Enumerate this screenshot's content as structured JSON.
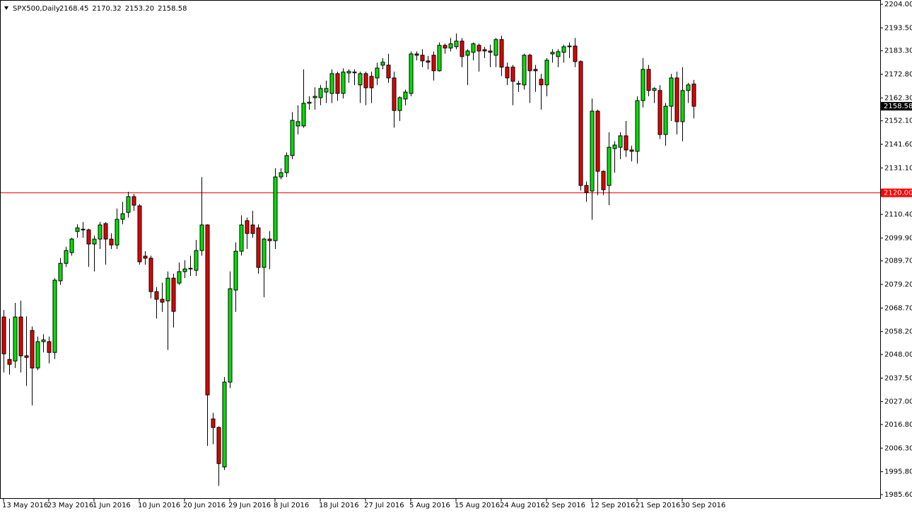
{
  "chart_data": {
    "type": "candlestick",
    "title": "SPX500,Daily",
    "ohlc_labels": [
      "2168.45",
      "2170.32",
      "2153.20",
      "2158.58"
    ],
    "categories": [
      "13 May 2016",
      null,
      null,
      null,
      null,
      null,
      null,
      null,
      "23 May 2016",
      null,
      null,
      null,
      null,
      null,
      null,
      null,
      "1 Jun 2016",
      null,
      null,
      null,
      null,
      null,
      null,
      null,
      "10 Jun 2016",
      null,
      null,
      null,
      null,
      null,
      null,
      null,
      "20 Jun 2016",
      null,
      null,
      null,
      null,
      null,
      null,
      null,
      "29 Jun 2016",
      null,
      null,
      null,
      null,
      null,
      null,
      null,
      "8 Jul 2016",
      null,
      null,
      null,
      null,
      null,
      null,
      null,
      "18 Jul 2016",
      null,
      null,
      null,
      null,
      null,
      null,
      null,
      "27 Jul 2016",
      null,
      null,
      null,
      null,
      null,
      null,
      null,
      "5 Aug 2016",
      null,
      null,
      null,
      null,
      null,
      null,
      null,
      "15 Aug 2016",
      null,
      null,
      null,
      null,
      null,
      null,
      null,
      "24 Aug 2016",
      null,
      null,
      null,
      null,
      null,
      null,
      null,
      "2 Sep 2016",
      null,
      null,
      null,
      null,
      null,
      null,
      null,
      "12 Sep 2016",
      null,
      null,
      null,
      null,
      null,
      null,
      null,
      "21 Sep 2016",
      null,
      null,
      null,
      null,
      null,
      null,
      null,
      "30 Sep 2016",
      null,
      null
    ],
    "open": [
      2064.7,
      2045.8,
      2045.1,
      2064.7,
      2047.4,
      2058.7,
      2042.0,
      2053.7,
      2053.7,
      2048.9,
      2080.8,
      2088.6,
      2093.4,
      2102.8,
      2103.5,
      2103.5,
      2097.2,
      2099.4,
      2106.3,
      2099.4,
      2096.8,
      2108.2,
      2111.3,
      2118.3,
      2114.2,
      2091.8,
      2090.9,
      2076.0,
      2072.6,
      2071.9,
      2082.0,
      2079.8,
      2084.9,
      2086.1,
      2085.5,
      2094.3,
      2105.7,
      2019.3,
      2015.5,
      1997.9,
      2035.7,
      2076.7,
      2094.0,
      2107.6,
      2105.7,
      2104.4,
      2086.8,
      2099.4,
      2098.7,
      2127.1,
      2129.0,
      2136.6,
      2149.8,
      2149.8,
      2159.9,
      2162.4,
      2162.4,
      2164.9,
      2164.3,
      2173.1,
      2164.3,
      2173.4,
      2173.8,
      2168.1,
      2173.1,
      2171.9,
      2171.2,
      2176.9,
      2176.9,
      2171.2,
      2156.7,
      2161.8,
      2164.3,
      2181.9,
      2181.3,
      2178.8,
      2181.3,
      2174.4,
      2185.7,
      2184.5,
      2185.1,
      2187.6,
      2181.3,
      2182.6,
      2185.7,
      2183.8,
      2183.2,
      2181.3,
      2188.3,
      2176.0,
      2176.0,
      2168.7,
      2168.1,
      2181.3,
      2175.0,
      2170.6,
      2168.1,
      2181.9,
      2180.7,
      2182.6,
      2185.4,
      2185.4,
      2178.5,
      2123.3,
      2120.8,
      2156.4,
      2129.6,
      2123.3,
      2139.7,
      2140.3,
      2145.4,
      2139.1,
      2138.5,
      2161.1,
      2175.0,
      2165.6,
      2165.6,
      2146.0,
      2158.6,
      2171.2,
      2151.7,
      2165.6,
      2168.45
    ],
    "high": [
      2067.8,
      2064,
      2071,
      2072,
      2065,
      2060.5,
      2056,
      2057,
      2056,
      2082,
      2091,
      2096,
      2100,
      2106,
      2107,
      2104,
      2101,
      2107,
      2107,
      2102,
      2113,
      2116,
      2120.5,
      2119.5,
      2115,
      2094,
      2092,
      2078,
      2080,
      2085,
      2084,
      2089,
      2090,
      2092,
      2099,
      2127,
      2106,
      2022,
      2016,
      2038,
      2085,
      2098,
      2110,
      2109,
      2112,
      2106,
      2100,
      2103,
      2131,
      2131,
      2138,
      2156,
      2159,
      2175,
      2163,
      2167,
      2168,
      2170,
      2175,
      2174,
      2175.5,
      2175,
      2175,
      2174,
      2174,
      2174,
      2178,
      2180,
      2182,
      2174,
      2163,
      2166,
      2183,
      2183,
      2184,
      2181,
      2183,
      2187,
      2186.5,
      2189,
      2191,
      2189,
      2184,
      2187,
      2186.5,
      2185,
      2186,
      2189,
      2190,
      2178,
      2177,
      2170,
      2182,
      2182,
      2177,
      2173,
      2180,
      2184,
      2184,
      2186,
      2187,
      2189,
      2179,
      2125,
      2162,
      2157,
      2130,
      2147,
      2143,
      2147,
      2152,
      2141,
      2163,
      2180,
      2177,
      2167,
      2168,
      2160,
      2173,
      2174,
      2176,
      2169,
      2170.32
    ],
    "low": [
      2040,
      2039,
      2042,
      2040,
      2034,
      2025.3,
      2041,
      2049,
      2044,
      2046,
      2079,
      2087,
      2092,
      2100,
      2100,
      2087,
      2085,
      2095,
      2088,
      2095,
      2095,
      2106,
      2109,
      2112,
      2088,
      2088,
      2073,
      2064,
      2067,
      2050,
      2060,
      2079,
      2082,
      2083,
      2083,
      2092,
      2007.3,
      2008,
      1989.5,
      1996.5,
      2033,
      2067,
      2092,
      2095,
      2100,
      2084,
      2073.5,
      2086,
      2095,
      2126,
      2127,
      2135,
      2146,
      2149,
      2157,
      2157,
      2159,
      2160,
      2160,
      2161,
      2162,
      2169,
      2168,
      2160,
      2159,
      2160,
      2168,
      2175,
      2169,
      2149,
      2152,
      2159,
      2163,
      2179,
      2176,
      2175,
      2170,
      2174,
      2182,
      2183,
      2184,
      2176,
      2168,
      2179,
      2174,
      2180,
      2176,
      2176,
      2172,
      2168,
      2159,
      2165,
      2166,
      2160,
      2165,
      2157,
      2163,
      2178,
      2176,
      2178,
      2180,
      2176,
      2121,
      2116,
      2108,
      2119,
      2119,
      2114.5,
      2129,
      2135,
      2136,
      2134,
      2133,
      2158,
      2163,
      2160,
      2144,
      2141,
      2152,
      2146,
      2143,
      2160,
      2153.2
    ],
    "close": [
      2048.3,
      2043.6,
      2064.7,
      2047.4,
      2046.7,
      2042.0,
      2053.7,
      2054.5,
      2048.9,
      2081.1,
      2088.6,
      2094.3,
      2099.4,
      2104.4,
      2103.8,
      2097.2,
      2099.4,
      2105.7,
      2099.4,
      2096.8,
      2108.2,
      2110.7,
      2118.3,
      2114.5,
      2089.3,
      2090.9,
      2076.0,
      2072.6,
      2071.3,
      2082.0,
      2067.2,
      2084.9,
      2086.1,
      2086.4,
      2094.3,
      2105.7,
      2030.0,
      2015.5,
      1999.4,
      2035.7,
      2077.3,
      2094.0,
      2105.7,
      2101.9,
      2101.9,
      2086.8,
      2099.4,
      2098.7,
      2127.1,
      2129.0,
      2136.6,
      2152.3,
      2151.7,
      2159.9,
      2160.4,
      2163.0,
      2166.5,
      2166.5,
      2173.1,
      2164.3,
      2173.8,
      2174.1,
      2173.6,
      2173.1,
      2166.8,
      2166.8,
      2175.6,
      2178.2,
      2171.2,
      2156.7,
      2162.4,
      2164.9,
      2181.9,
      2181.3,
      2178.8,
      2178.2,
      2174.4,
      2185.7,
      2184.5,
      2186.4,
      2187.6,
      2180.7,
      2183.2,
      2186.4,
      2183.2,
      2183.2,
      2182.6,
      2188.3,
      2176.0,
      2171.2,
      2169.7,
      2168.4,
      2181.3,
      2174.4,
      2174.4,
      2168.1,
      2179.1,
      2182.6,
      2182.9,
      2185.1,
      2185.1,
      2178.5,
      2123.3,
      2120.2,
      2156.4,
      2129.6,
      2121.4,
      2140.3,
      2141.3,
      2145.4,
      2139.1,
      2138.5,
      2161.1,
      2175.0,
      2165.6,
      2166.5,
      2146.0,
      2158.6,
      2171.2,
      2151.7,
      2165.6,
      2168.1,
      2158.58
    ],
    "up_color": "#00e000",
    "down_color": "#e00000",
    "ylim": [
      1983.7,
      2205.9
    ],
    "yticks": [
      {
        "value": 2204,
        "label": "2204.00"
      },
      {
        "value": 2193.5,
        "label": "2193.50"
      },
      {
        "value": 2183.3,
        "label": "2183.30"
      },
      {
        "value": 2172.8,
        "label": "2172.80"
      },
      {
        "value": 2162.3,
        "label": "2162.30"
      },
      {
        "value": 2152.1,
        "label": "2152.10"
      },
      {
        "value": 2141.6,
        "label": "2141.60"
      },
      {
        "value": 2131.1,
        "label": "2131.10"
      },
      {
        "value": 2110.4,
        "label": "2110.40"
      },
      {
        "value": 2099.9,
        "label": "2099.90"
      },
      {
        "value": 2089.7,
        "label": "2089.70"
      },
      {
        "value": 2079.2,
        "label": "2079.20"
      },
      {
        "value": 2068.7,
        "label": "2068.70"
      },
      {
        "value": 2058.2,
        "label": "2058.20"
      },
      {
        "value": 2048,
        "label": "2048.00"
      },
      {
        "value": 2037.5,
        "label": "2037.50"
      },
      {
        "value": 2027,
        "label": "2027.00"
      },
      {
        "value": 2016.8,
        "label": "2016.80"
      },
      {
        "value": 2006.3,
        "label": "2006.30"
      },
      {
        "value": 1995.8,
        "label": "1995.80"
      },
      {
        "value": 1985.6,
        "label": "1985.60"
      }
    ],
    "hline": {
      "value": 2120,
      "label": "2120.00",
      "color": "#ff0000"
    },
    "last_price": {
      "value": 2158.58,
      "label": "2158.58"
    },
    "grid": false
  }
}
